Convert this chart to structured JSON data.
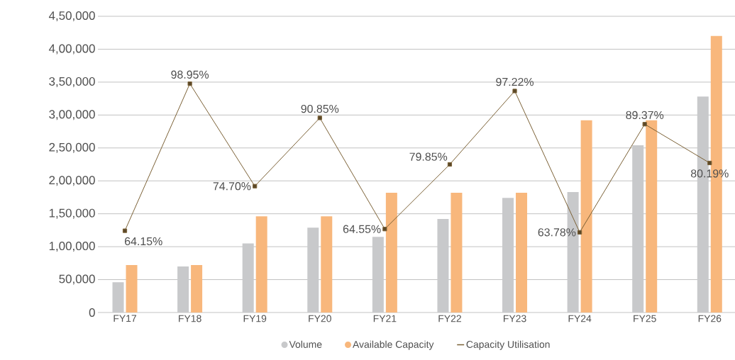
{
  "chart_data": {
    "type": "bar",
    "categories": [
      "FY17",
      "FY18",
      "FY19",
      "FY20",
      "FY21",
      "FY22",
      "FY23",
      "FY24",
      "FY25",
      "FY26"
    ],
    "series": [
      {
        "name": "Volume",
        "color": "#c8c9cb",
        "values": [
          46000,
          70000,
          105000,
          129000,
          115000,
          142000,
          174000,
          183000,
          254000,
          328000
        ]
      },
      {
        "name": "Available Capacity",
        "color": "#f8b77c",
        "values": [
          72000,
          72000,
          146000,
          146000,
          182000,
          182000,
          182000,
          292000,
          292000,
          420000
        ]
      },
      {
        "name": "Capacity Utilisation",
        "type": "line",
        "axis": "y2",
        "color": "#7a6035",
        "marker": "square",
        "values": [
          64.15,
          98.95,
          74.7,
          90.85,
          64.55,
          79.85,
          97.22,
          63.78,
          89.37,
          80.19
        ],
        "value_labels": [
          "64.15%",
          "98.95%",
          "74.70%",
          "90.85%",
          "64.55%",
          "79.85%",
          "97.22%",
          "63.78%",
          "89.37%",
          "80.19%"
        ]
      }
    ],
    "ylim": [
      0,
      450000
    ],
    "yticks": [
      {
        "value": 0,
        "label": "0"
      },
      {
        "value": 50000,
        "label": "50,000"
      },
      {
        "value": 100000,
        "label": "1,00,000"
      },
      {
        "value": 150000,
        "label": "1,50,000"
      },
      {
        "value": 200000,
        "label": "2,00,000"
      },
      {
        "value": 250000,
        "label": "2,50,000"
      },
      {
        "value": 300000,
        "label": "3,00,000"
      },
      {
        "value": 350000,
        "label": "3,50,000"
      },
      {
        "value": 400000,
        "label": "4,00,000"
      },
      {
        "value": 450000,
        "label": "4,50,000"
      }
    ],
    "y2lim": [
      44.8,
      114.9
    ],
    "grid": "y",
    "legend": "bottom"
  }
}
